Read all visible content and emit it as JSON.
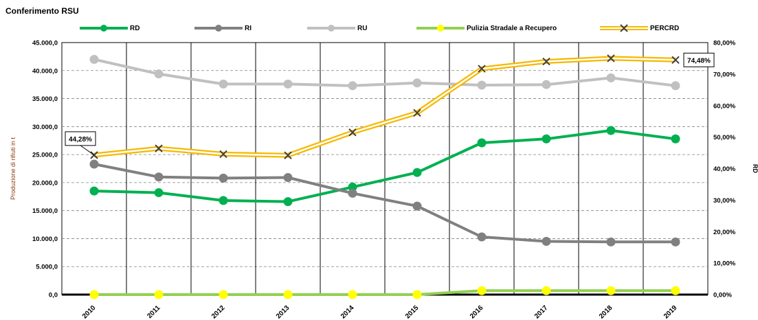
{
  "chart_data": {
    "type": "line",
    "title": "Conferimento  RSU",
    "ylabel": "Produzione  di  rifiuti in t",
    "y2label": "RD",
    "categories": [
      "2010",
      "2011",
      "2012",
      "2013",
      "2014",
      "2015",
      "2016",
      "2017",
      "2018",
      "2019"
    ],
    "ylim": [
      0,
      45000
    ],
    "y_ticks": [
      "0,0",
      "5.000,0",
      "10.000,0",
      "15.000,0",
      "20.000,0",
      "25.000,0",
      "30.000,0",
      "35.000,0",
      "40.000,0",
      "45.000,0"
    ],
    "y2lim": [
      0,
      80
    ],
    "y2_ticks": [
      "0,00%",
      "10,00%",
      "20,00%",
      "30,00%",
      "40,00%",
      "50,00%",
      "60,00%",
      "70,00%",
      "80,00%"
    ],
    "grid": true,
    "legend_position": "top",
    "series": [
      {
        "name": "RD",
        "axis": "left",
        "color": "#00b050",
        "values": [
          18500,
          18200,
          16800,
          16600,
          19200,
          21800,
          27100,
          27800,
          29300,
          27800
        ]
      },
      {
        "name": "RI",
        "axis": "left",
        "color": "#808080",
        "values": [
          23300,
          21000,
          20800,
          20900,
          18100,
          15800,
          10300,
          9500,
          9400,
          9400
        ]
      },
      {
        "name": "RU",
        "axis": "left",
        "color": "#c0c0c0",
        "values": [
          42000,
          39400,
          37600,
          37600,
          37300,
          37800,
          37400,
          37500,
          38700,
          37300
        ]
      },
      {
        "name": "Pulizia Stradale a Recupero",
        "axis": "left",
        "color": "#92d050",
        "marker_color": "#ffff00",
        "values": [
          0,
          0,
          0,
          0,
          0,
          0,
          700,
          700,
          700,
          700
        ]
      },
      {
        "name": "PERCRD",
        "axis": "right",
        "color": "#f5b800",
        "values": [
          44.28,
          46.4,
          44.6,
          44.2,
          51.5,
          57.7,
          71.7,
          74.0,
          75.0,
          74.48
        ]
      }
    ],
    "annotations": [
      {
        "series": "PERCRD",
        "index": 0,
        "text": "44,28%"
      },
      {
        "series": "PERCRD",
        "index": 9,
        "text": "74,48%"
      }
    ]
  }
}
